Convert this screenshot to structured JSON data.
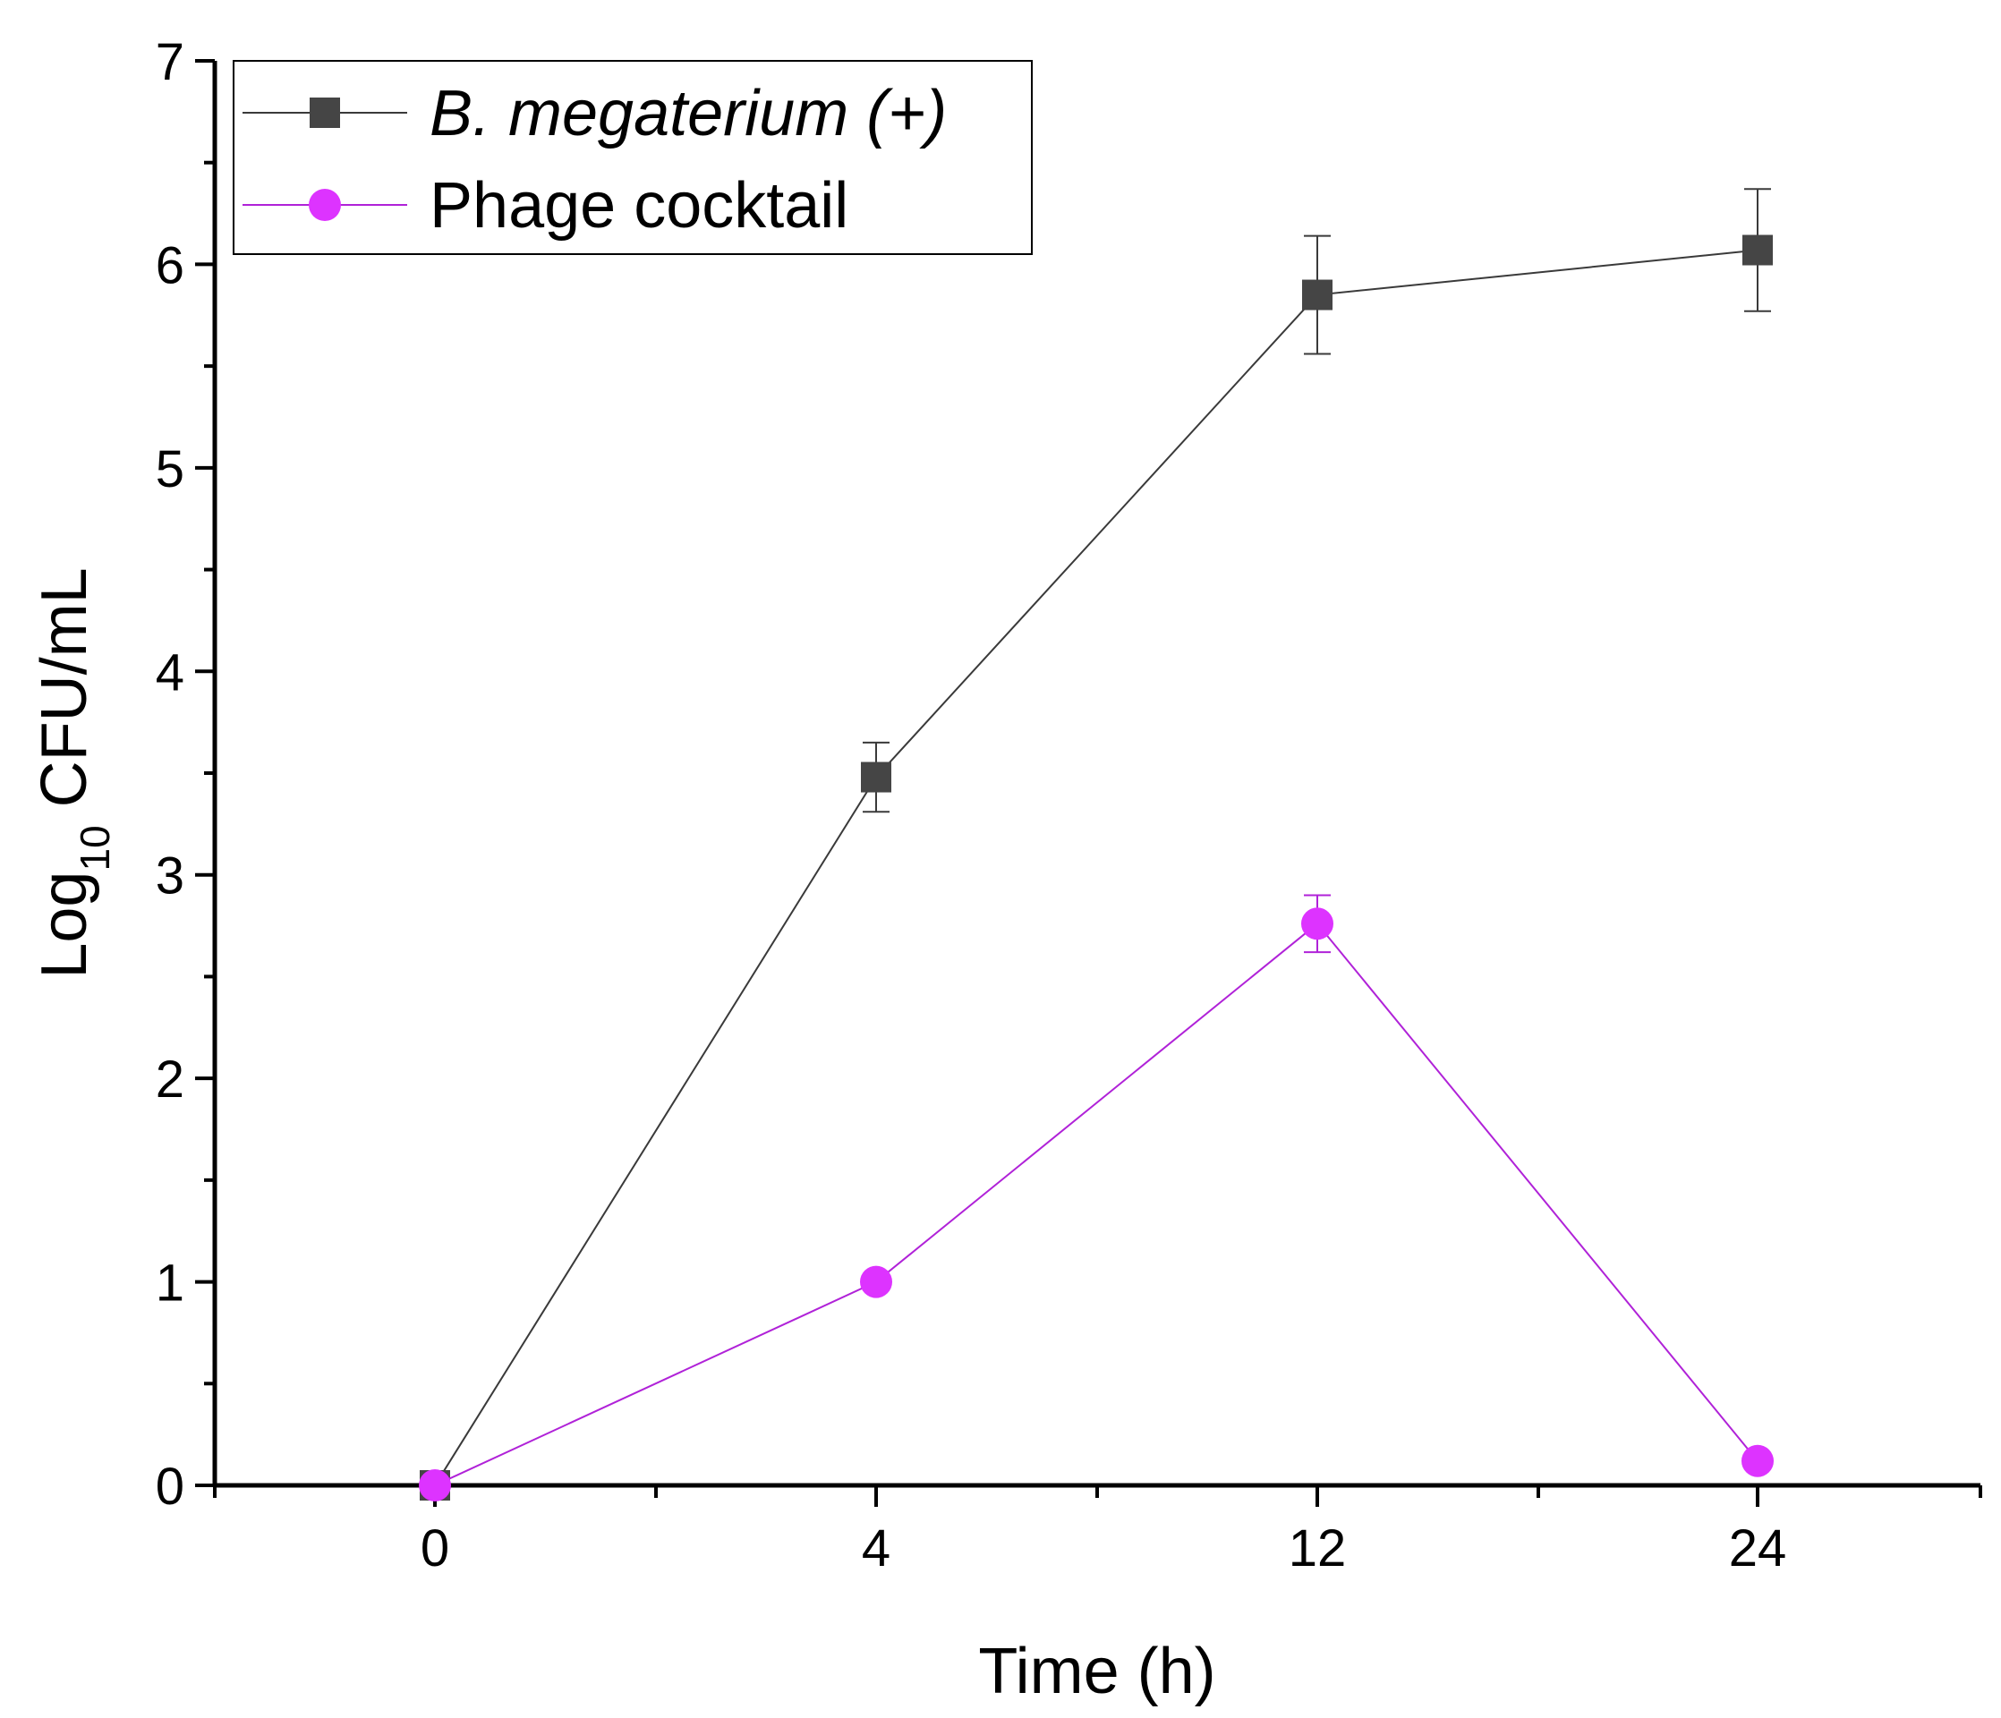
{
  "chart_data": {
    "type": "line",
    "title": "",
    "xlabel": "Time (h)",
    "ylabel_main": "Log",
    "ylabel_sub": "10",
    "ylabel_rest": " CFU/mL",
    "ylim": [
      0,
      7
    ],
    "yticks": [
      "0",
      "1",
      "2",
      "3",
      "4",
      "5",
      "6",
      "7"
    ],
    "categories": [
      "0",
      "4",
      "12",
      "24"
    ],
    "legend_position": "top-left",
    "grid": false,
    "series": [
      {
        "name": "B. megaterium (+)",
        "marker": "square",
        "color": "#454545",
        "line_color": "#3a3a3a",
        "values": [
          0.0,
          3.48,
          5.85,
          6.07
        ],
        "errors": [
          0.0,
          0.17,
          0.29,
          0.3
        ]
      },
      {
        "name": "Phage cocktail",
        "marker": "circle",
        "color": "#dd33ff",
        "line_color": "#b022d8",
        "values": [
          0.0,
          1.0,
          2.76,
          0.12
        ],
        "errors": [
          0.0,
          0.0,
          0.14,
          0.0
        ]
      }
    ]
  }
}
